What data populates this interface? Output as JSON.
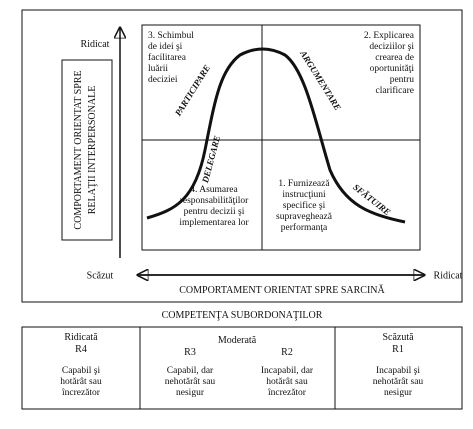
{
  "y_axis": {
    "high": "Ridicat",
    "low": "Scăzut",
    "title": [
      "COMPORTAMENT ORIENTAT SPRE",
      "RELAŢII INTERPERSONALE"
    ]
  },
  "x_axis": {
    "high": "Ridicat",
    "title": "COMPORTAMENT ORIENTAT SPRE SARCINĂ"
  },
  "quadrants": [
    {
      "lines": [
        "3. Schimbul",
        "de idei şi",
        "facilitarea",
        "luării",
        "deciziei"
      ]
    },
    {
      "lines": [
        "2. Explicarea",
        "deciziilor şi",
        "crearea de",
        "oportunităţi",
        "pentru",
        "clarificare"
      ]
    },
    {
      "lines": [
        "4. Asumarea",
        "responsabilităţilor",
        "pentru decizii şi",
        "implementarea lor"
      ]
    },
    {
      "lines": [
        "1. Furnizează",
        "instrucţiuni",
        "specifice şi",
        "supraveghează",
        "performanţa"
      ]
    }
  ],
  "curve_labels": [
    "PARTICIPARE",
    "ARGUMENTARE",
    "DELEGARE",
    "SFĂTUIRE"
  ],
  "table": {
    "title": "COMPETENŢA SUBORDONAŢILOR",
    "groups": [
      "Ridicată",
      "Moderată",
      "Scăzută"
    ],
    "levels": [
      {
        "code": "R4",
        "lines": [
          "Capabil şi",
          "hotărât sau",
          "încrezător"
        ]
      },
      {
        "code": "R3",
        "lines": [
          "Capabil, dar",
          "nehotărât sau",
          "nesigur"
        ]
      },
      {
        "code": "R2",
        "lines": [
          "Incapabil, dar",
          "hotărât sau",
          "încrezător"
        ]
      },
      {
        "code": "R1",
        "lines": [
          "Incapabil şi",
          "nehotărât sau",
          "nesigur"
        ]
      }
    ]
  }
}
